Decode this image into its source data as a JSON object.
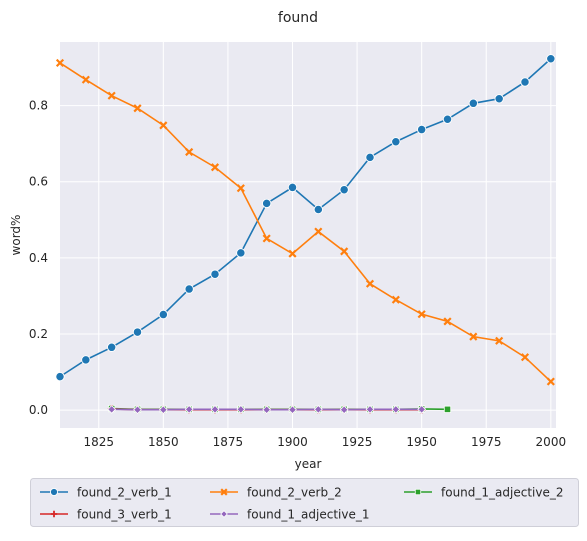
{
  "chart_data": {
    "type": "line",
    "title": "found",
    "xlabel": "year",
    "ylabel": "word%",
    "xlim": [
      1810,
      2002
    ],
    "ylim": [
      -0.047,
      0.967
    ],
    "x_ticks": [
      1825,
      1850,
      1875,
      1900,
      1925,
      1950,
      1975,
      2000
    ],
    "y_ticks": [
      0.0,
      0.2,
      0.4,
      0.6,
      0.8
    ],
    "grid": true,
    "legend_position": "below",
    "series": [
      {
        "name": "found_2_verb_1",
        "color": "#1f77b4",
        "marker": "circle",
        "x": [
          1810,
          1820,
          1830,
          1840,
          1850,
          1860,
          1870,
          1880,
          1890,
          1900,
          1910,
          1920,
          1930,
          1940,
          1950,
          1960,
          1970,
          1980,
          1990,
          2000
        ],
        "y": [
          0.088,
          0.132,
          0.165,
          0.205,
          0.251,
          0.318,
          0.357,
          0.413,
          0.543,
          0.585,
          0.527,
          0.579,
          0.664,
          0.705,
          0.737,
          0.764,
          0.806,
          0.818,
          0.862,
          0.923
        ]
      },
      {
        "name": "found_2_verb_2",
        "color": "#ff7f0e",
        "marker": "x",
        "x": [
          1810,
          1820,
          1830,
          1840,
          1850,
          1860,
          1870,
          1880,
          1890,
          1900,
          1910,
          1920,
          1930,
          1940,
          1950,
          1960,
          1970,
          1980,
          1990,
          2000
        ],
        "y": [
          0.912,
          0.868,
          0.826,
          0.793,
          0.748,
          0.678,
          0.638,
          0.583,
          0.451,
          0.411,
          0.469,
          0.417,
          0.332,
          0.29,
          0.252,
          0.233,
          0.193,
          0.182,
          0.139,
          0.075
        ]
      },
      {
        "name": "found_1_adjective_2",
        "color": "#2ca02c",
        "marker": "square",
        "x": [
          1830,
          1840,
          1850,
          1860,
          1870,
          1880,
          1890,
          1900,
          1910,
          1920,
          1930,
          1940,
          1950,
          1960
        ],
        "y": [
          0.004,
          0.002,
          0.002,
          0.002,
          0.002,
          0.002,
          0.002,
          0.002,
          0.002,
          0.002,
          0.002,
          0.002,
          0.003,
          0.002
        ]
      },
      {
        "name": "found_3_verb_1",
        "color": "#d62728",
        "marker": "plus",
        "x": [
          1830,
          1840,
          1850,
          1860,
          1870,
          1880,
          1890,
          1900,
          1910,
          1920,
          1930,
          1940,
          1950
        ],
        "y": [
          0.003,
          0.001,
          0.001,
          0.001,
          0.001,
          0.001,
          0.001,
          0.001,
          0.001,
          0.001,
          0.001,
          0.001,
          0.001
        ]
      },
      {
        "name": "found_1_adjective_1",
        "color": "#9467bd",
        "marker": "diamond",
        "x": [
          1830,
          1840,
          1850,
          1860,
          1870,
          1880,
          1890,
          1900,
          1910,
          1920,
          1930,
          1940,
          1950
        ],
        "y": [
          0.002,
          0.001,
          0.001,
          0.002,
          0.002,
          0.002,
          0.001,
          0.001,
          0.002,
          0.001,
          0.002,
          0.002,
          0.002
        ]
      }
    ]
  }
}
